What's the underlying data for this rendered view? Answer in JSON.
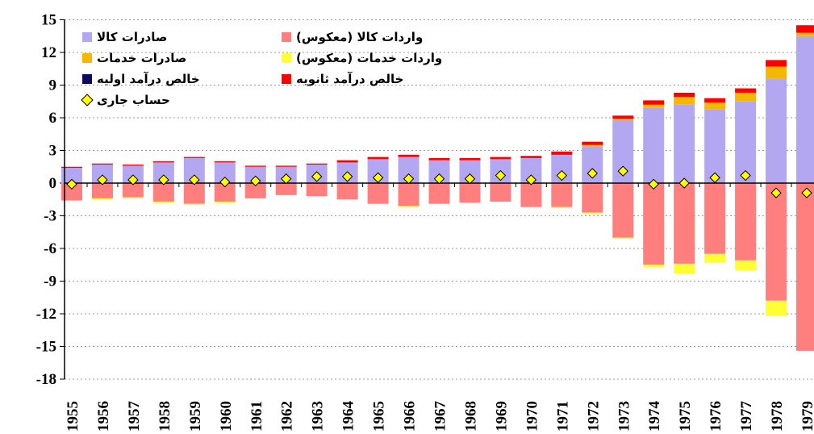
{
  "chart_data": {
    "type": "bar",
    "stacked": true,
    "categories": [
      "1955",
      "1956",
      "1957",
      "1958",
      "1959",
      "1960",
      "1961",
      "1962",
      "1963",
      "1964",
      "1965",
      "1966",
      "1967",
      "1968",
      "1969",
      "1970",
      "1971",
      "1972",
      "1973",
      "1974",
      "1975",
      "1976",
      "1977",
      "1978",
      "1979"
    ],
    "ylim": [
      -18,
      15
    ],
    "yticks": [
      -18,
      -15,
      -12,
      -9,
      -6,
      -3,
      0,
      3,
      6,
      9,
      12,
      15
    ],
    "grid": true,
    "series": [
      {
        "name": "صادرات کالا",
        "color": "#b4a7f2",
        "type": "bar",
        "values": [
          1.4,
          1.7,
          1.6,
          1.9,
          2.3,
          1.9,
          1.5,
          1.5,
          1.7,
          1.9,
          2.2,
          2.4,
          2.1,
          2.1,
          2.2,
          2.3,
          2.6,
          3.4,
          5.8,
          6.9,
          7.2,
          6.8,
          7.5,
          9.6,
          13.5
        ]
      },
      {
        "name": "واردات کالا (معکوس)",
        "color": "#ff7f7f",
        "type": "bar",
        "values": [
          -1.6,
          -1.4,
          -1.3,
          -1.7,
          -1.9,
          -1.7,
          -1.4,
          -1.1,
          -1.2,
          -1.5,
          -1.9,
          -2.1,
          -1.9,
          -1.8,
          -1.7,
          -2.2,
          -2.2,
          -2.7,
          -5.0,
          -7.5,
          -7.4,
          -6.5,
          -7.1,
          -10.8,
          -15.4
        ]
      },
      {
        "name": "صادرات خدمات",
        "color": "#f5b800",
        "type": "bar",
        "values": [
          0,
          0,
          0,
          0,
          0,
          0,
          0,
          0,
          0,
          0,
          0,
          0,
          0,
          0,
          0,
          0,
          0,
          0.1,
          0.1,
          0.3,
          0.7,
          0.6,
          0.8,
          1.1,
          0.3
        ]
      },
      {
        "name": "واردات خدمات (معکوس)",
        "color": "#ffff33",
        "type": "bar",
        "values": [
          0,
          -0.1,
          -0.1,
          -0.1,
          -0.1,
          -0.1,
          0,
          0,
          0,
          0,
          0,
          -0.1,
          0,
          0,
          0,
          0,
          -0.1,
          -0.1,
          -0.1,
          -0.2,
          -0.9,
          -0.8,
          -0.9,
          -1.4,
          0
        ]
      },
      {
        "name": "خالص درآمد اولیه",
        "color": "#0a0a60",
        "type": "bar",
        "values": [
          0,
          0,
          0,
          0,
          0,
          0,
          0,
          0,
          0,
          0,
          0,
          0,
          0,
          0,
          0,
          0,
          0,
          0,
          0,
          0,
          0,
          0,
          0,
          0,
          0
        ]
      },
      {
        "name": "خالص درآمد ثانویه",
        "color": "#ff0000",
        "type": "bar",
        "values": [
          0.1,
          0.1,
          0.1,
          0.1,
          0.1,
          0.1,
          0.1,
          0.1,
          0.1,
          0.2,
          0.2,
          0.2,
          0.2,
          0.2,
          0.2,
          0.2,
          0.3,
          0.3,
          0.3,
          0.4,
          0.4,
          0.4,
          0.4,
          0.6,
          0.7
        ]
      },
      {
        "name": "حساب جاری",
        "color": "#ffff00",
        "type": "scatter",
        "values": [
          -0.1,
          0.3,
          0.3,
          0.3,
          0.3,
          0.1,
          0.2,
          0.4,
          0.6,
          0.6,
          0.5,
          0.4,
          0.4,
          0.4,
          0.7,
          0.3,
          0.7,
          0.9,
          1.1,
          -0.1,
          0.0,
          0.5,
          0.7,
          -0.9,
          -0.9
        ]
      }
    ]
  }
}
